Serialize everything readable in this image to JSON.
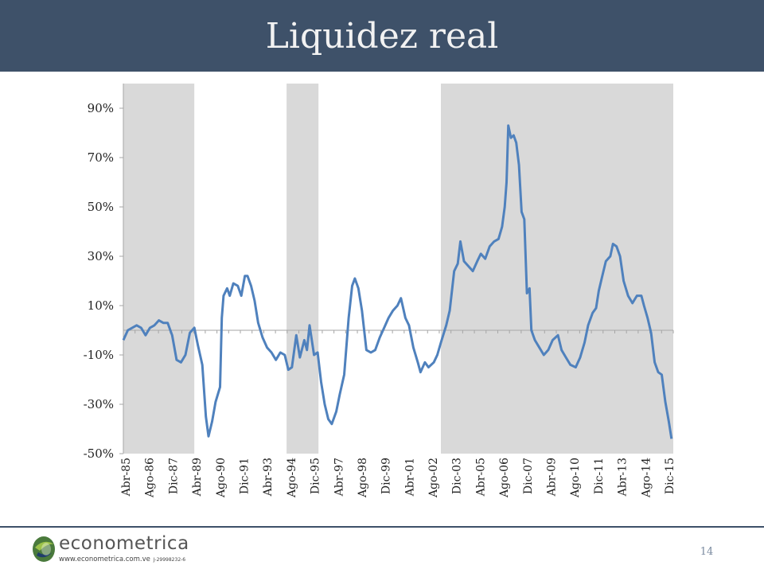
{
  "slide": {
    "title": "Liquidez real",
    "page_number": "14"
  },
  "logo": {
    "brand": "econometrica",
    "url": "www.econometrica.com.ve",
    "rif": "J-29998232-6"
  },
  "colors": {
    "header": "#3e5169",
    "line": "#4f81bd",
    "shading": "#d9d9d9",
    "footer_line": "#3e5169"
  },
  "chart_data": {
    "type": "line",
    "title": "",
    "xlabel": "",
    "ylabel": "",
    "ylim": [
      -50,
      100
    ],
    "y_ticks": [
      90,
      70,
      50,
      30,
      10,
      -10,
      -30,
      -50
    ],
    "y_tick_labels": [
      "90%",
      "70%",
      "50%",
      "30%",
      "10%",
      "-10%",
      "-30%",
      "-50%"
    ],
    "grid": false,
    "x_tick_labels": [
      "Abr-85",
      "Ago-86",
      "Dic-87",
      "Abr-89",
      "Ago-90",
      "Dic-91",
      "Abr-93",
      "Ago-94",
      "Dic-95",
      "Abr-97",
      "Ago-98",
      "Dic-99",
      "Abr-01",
      "Ago-02",
      "Dic-03",
      "Abr-05",
      "Ago-06",
      "Dic-07",
      "Abr-09",
      "Ago-10",
      "Dic-11",
      "Abr-13",
      "Ago-14",
      "Dic-15"
    ],
    "shaded_periods": [
      {
        "start": 1985.0,
        "end": 1989.0
      },
      {
        "start": 1994.2,
        "end": 1996.0
      },
      {
        "start": 2002.9,
        "end": 2016.0
      }
    ],
    "series": [
      {
        "values": [
          [
            1985.0,
            -4
          ],
          [
            1985.25,
            0
          ],
          [
            1985.5,
            1
          ],
          [
            1985.75,
            2
          ],
          [
            1986.0,
            1
          ],
          [
            1986.25,
            -2
          ],
          [
            1986.5,
            1
          ],
          [
            1986.75,
            2
          ],
          [
            1987.0,
            4
          ],
          [
            1987.25,
            3
          ],
          [
            1987.5,
            3
          ],
          [
            1987.75,
            -2
          ],
          [
            1988.0,
            -12
          ],
          [
            1988.25,
            -13
          ],
          [
            1988.5,
            -10
          ],
          [
            1988.75,
            -1
          ],
          [
            1989.0,
            1
          ],
          [
            1989.2,
            -6
          ],
          [
            1989.45,
            -14
          ],
          [
            1989.65,
            -35
          ],
          [
            1989.8,
            -43
          ],
          [
            1990.0,
            -37
          ],
          [
            1990.2,
            -29
          ],
          [
            1990.45,
            -23
          ],
          [
            1990.55,
            5
          ],
          [
            1990.65,
            14
          ],
          [
            1990.85,
            17
          ],
          [
            1991.0,
            14
          ],
          [
            1991.2,
            19
          ],
          [
            1991.45,
            18
          ],
          [
            1991.65,
            14
          ],
          [
            1991.85,
            22
          ],
          [
            1992.0,
            22
          ],
          [
            1992.2,
            18
          ],
          [
            1992.4,
            12
          ],
          [
            1992.6,
            3
          ],
          [
            1992.85,
            -3
          ],
          [
            1993.1,
            -7
          ],
          [
            1993.35,
            -9
          ],
          [
            1993.6,
            -12
          ],
          [
            1993.85,
            -9
          ],
          [
            1994.1,
            -10
          ],
          [
            1994.3,
            -16
          ],
          [
            1994.5,
            -15
          ],
          [
            1994.75,
            -2
          ],
          [
            1994.95,
            -11
          ],
          [
            1995.2,
            -4
          ],
          [
            1995.35,
            -8
          ],
          [
            1995.5,
            2
          ],
          [
            1995.75,
            -10
          ],
          [
            1995.95,
            -9
          ],
          [
            1996.15,
            -21
          ],
          [
            1996.35,
            -30
          ],
          [
            1996.55,
            -36
          ],
          [
            1996.75,
            -38
          ],
          [
            1997.0,
            -33
          ],
          [
            1997.2,
            -26
          ],
          [
            1997.45,
            -18
          ],
          [
            1997.7,
            5
          ],
          [
            1997.9,
            18
          ],
          [
            1998.05,
            21
          ],
          [
            1998.25,
            17
          ],
          [
            1998.45,
            8
          ],
          [
            1998.7,
            -8
          ],
          [
            1998.95,
            -9
          ],
          [
            1999.2,
            -8
          ],
          [
            1999.45,
            -3
          ],
          [
            1999.7,
            1
          ],
          [
            1999.95,
            5
          ],
          [
            2000.2,
            8
          ],
          [
            2000.45,
            10
          ],
          [
            2000.65,
            13
          ],
          [
            2000.9,
            5
          ],
          [
            2001.1,
            2
          ],
          [
            2001.35,
            -7
          ],
          [
            2001.6,
            -13
          ],
          [
            2001.75,
            -17
          ],
          [
            2002.0,
            -13
          ],
          [
            2002.2,
            -15
          ],
          [
            2002.5,
            -13
          ],
          [
            2002.7,
            -10
          ],
          [
            2002.9,
            -5
          ],
          [
            2003.2,
            2
          ],
          [
            2003.4,
            8
          ],
          [
            2003.65,
            24
          ],
          [
            2003.85,
            27
          ],
          [
            2004.0,
            36
          ],
          [
            2004.2,
            28
          ],
          [
            2004.45,
            26
          ],
          [
            2004.7,
            24
          ],
          [
            2004.95,
            28
          ],
          [
            2005.15,
            31
          ],
          [
            2005.4,
            29
          ],
          [
            2005.65,
            34
          ],
          [
            2005.9,
            36
          ],
          [
            2006.15,
            37
          ],
          [
            2006.35,
            42
          ],
          [
            2006.5,
            50
          ],
          [
            2006.6,
            60
          ],
          [
            2006.7,
            83
          ],
          [
            2006.85,
            78
          ],
          [
            2007.0,
            79
          ],
          [
            2007.15,
            76
          ],
          [
            2007.3,
            67
          ],
          [
            2007.45,
            48
          ],
          [
            2007.6,
            45
          ],
          [
            2007.75,
            15
          ],
          [
            2007.9,
            17
          ],
          [
            2008.0,
            0
          ],
          [
            2008.2,
            -4
          ],
          [
            2008.45,
            -7
          ],
          [
            2008.7,
            -10
          ],
          [
            2008.95,
            -8
          ],
          [
            2009.2,
            -4
          ],
          [
            2009.5,
            -2
          ],
          [
            2009.7,
            -8
          ],
          [
            2009.95,
            -11
          ],
          [
            2010.2,
            -14
          ],
          [
            2010.5,
            -15
          ],
          [
            2010.75,
            -11
          ],
          [
            2011.0,
            -5
          ],
          [
            2011.2,
            2
          ],
          [
            2011.45,
            7
          ],
          [
            2011.65,
            9
          ],
          [
            2011.8,
            16
          ],
          [
            2012.0,
            22
          ],
          [
            2012.2,
            28
          ],
          [
            2012.45,
            30
          ],
          [
            2012.6,
            35
          ],
          [
            2012.8,
            34
          ],
          [
            2013.0,
            30
          ],
          [
            2013.2,
            20
          ],
          [
            2013.45,
            14
          ],
          [
            2013.7,
            11
          ],
          [
            2013.95,
            14
          ],
          [
            2014.2,
            14
          ],
          [
            2014.35,
            10
          ],
          [
            2014.55,
            5
          ],
          [
            2014.75,
            -1
          ],
          [
            2014.95,
            -13
          ],
          [
            2015.15,
            -17
          ],
          [
            2015.35,
            -18
          ],
          [
            2015.55,
            -29
          ],
          [
            2015.75,
            -37
          ],
          [
            2015.9,
            -44
          ]
        ]
      }
    ]
  }
}
